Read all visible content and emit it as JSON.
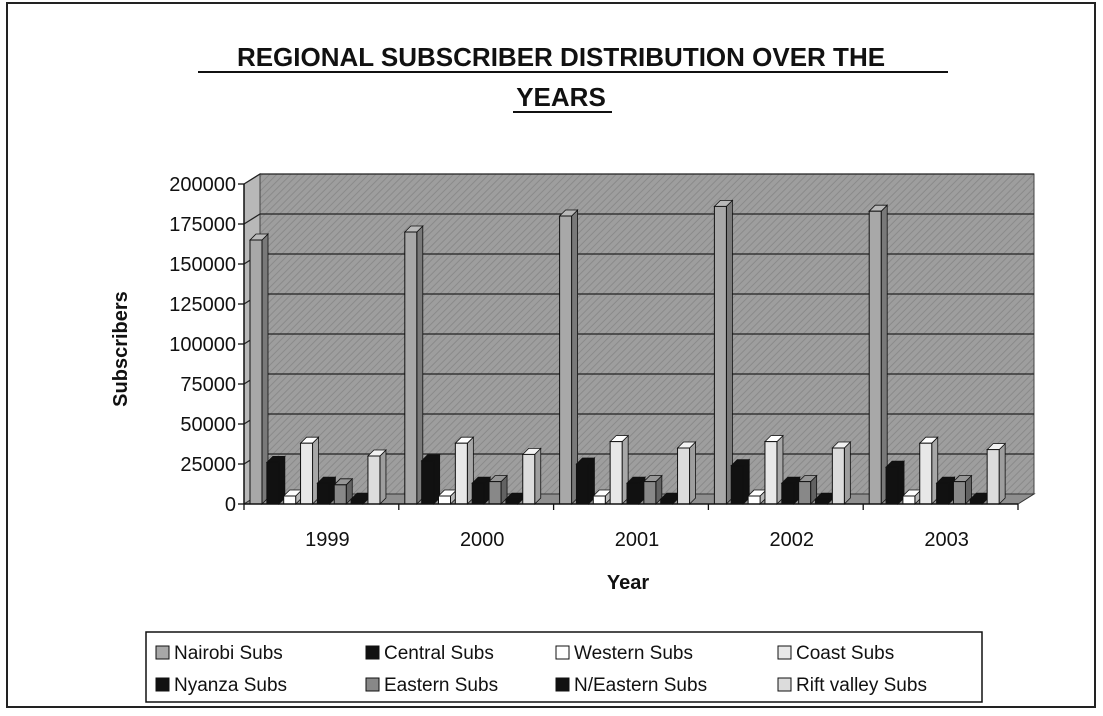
{
  "chart_data": {
    "type": "bar",
    "title_lines": [
      "REGIONAL SUBSCRIBER DISTRIBUTION OVER THE",
      "YEARS"
    ],
    "xlabel": "Year",
    "ylabel": "Subscribers",
    "categories": [
      "1999",
      "2000",
      "2001",
      "2002",
      "2003"
    ],
    "ylim": [
      0,
      200000
    ],
    "yticks": [
      0,
      25000,
      50000,
      75000,
      100000,
      125000,
      150000,
      175000,
      200000
    ],
    "grid": true,
    "legend_position": "bottom",
    "series": [
      {
        "name": "Nairobi Subs",
        "values": [
          165000,
          170000,
          180000,
          186000,
          183000
        ],
        "color": "#a8a8a8"
      },
      {
        "name": "Central Subs",
        "values": [
          26000,
          27000,
          25000,
          24000,
          23000
        ],
        "color": "#111111"
      },
      {
        "name": "Western Subs",
        "values": [
          5000,
          5000,
          5000,
          5000,
          5000
        ],
        "color": "#ffffff"
      },
      {
        "name": "Coast Subs",
        "values": [
          38000,
          38000,
          39000,
          39000,
          38000
        ],
        "color": "#e8e8e8"
      },
      {
        "name": "Nyanza Subs",
        "values": [
          13000,
          13000,
          13000,
          13000,
          13000
        ],
        "color": "#111111"
      },
      {
        "name": "Eastern Subs",
        "values": [
          12000,
          14000,
          14000,
          14000,
          14000
        ],
        "color": "#888888"
      },
      {
        "name": "N/Eastern Subs",
        "values": [
          3000,
          3000,
          3000,
          3000,
          3000
        ],
        "color": "#111111"
      },
      {
        "name": "Rift valley Subs",
        "values": [
          30000,
          31000,
          35000,
          35000,
          34000
        ],
        "color": "#dcdcdc"
      }
    ]
  }
}
